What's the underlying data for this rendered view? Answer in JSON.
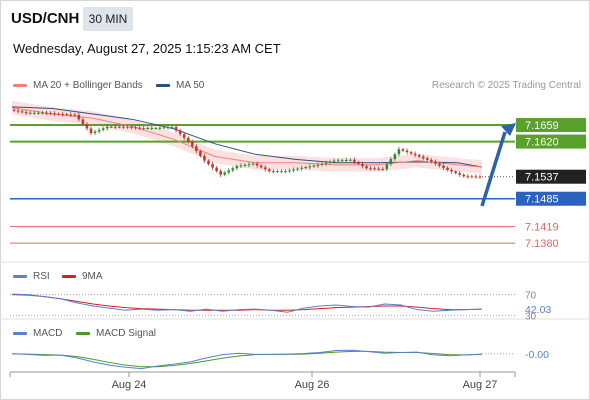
{
  "header": {
    "symbol": "USD/CNH",
    "timeframe": "30 MIN",
    "datetime": "Wednesday, August 27, 2025 1:15:23 AM CET"
  },
  "legend": {
    "ma20": {
      "label": "MA 20 + Bollinger Bands",
      "color": "#f08080"
    },
    "ma50": {
      "label": "MA 50",
      "color": "#2f4f7f"
    },
    "credit": "Research © 2025 Trading Central"
  },
  "colors": {
    "bull": "#2e8b2e",
    "bear": "#c0392b",
    "band": "#fcd6d6",
    "resistance": "#5aa02c",
    "support": "#2b62c0",
    "pivot": "#e06666",
    "last": "#222222",
    "rsi": "#5b7fd6",
    "rsi_ma": "#d62020",
    "macd": "#5b7fd6",
    "macd_signal": "#4b9a2a"
  },
  "chart_data": {
    "type": "line",
    "title": "USD/CNH",
    "subtitle": "30 MIN",
    "xlabel": "",
    "ylabel": "",
    "x_ticks": [
      "Aug 24",
      "Aug 26",
      "Aug 27"
    ],
    "ylim": [
      7.1345,
      7.173
    ],
    "series": [
      {
        "name": "USD/CNH",
        "x": [
          0,
          4,
          8,
          12,
          16,
          20,
          24,
          28,
          32,
          36,
          40,
          44,
          48,
          52,
          56,
          60,
          64,
          68,
          72,
          76,
          80,
          84,
          88,
          92,
          96,
          100,
          104,
          108,
          112,
          116
        ],
        "values": [
          7.1695,
          7.1688,
          7.1688,
          7.1685,
          7.1683,
          7.164,
          7.1655,
          7.1655,
          7.1652,
          7.1652,
          7.1655,
          7.162,
          7.1575,
          7.1542,
          7.1562,
          7.1568,
          7.155,
          7.155,
          7.1558,
          7.1565,
          7.1575,
          7.1577,
          7.1557,
          7.1555,
          7.1602,
          7.1588,
          7.1573,
          7.1553,
          7.1538,
          7.1537
        ]
      },
      {
        "name": "MA 20 + Bollinger Bands",
        "x": [
          0,
          10,
          20,
          30,
          40,
          50,
          60,
          70,
          80,
          90,
          100,
          110,
          116
        ],
        "values": [
          7.17,
          7.1685,
          7.1675,
          7.1655,
          7.1625,
          7.1585,
          7.157,
          7.157,
          7.1565,
          7.1565,
          7.1575,
          7.1565,
          7.156
        ]
      },
      {
        "name": "MA 50",
        "x": [
          0,
          10,
          20,
          30,
          40,
          50,
          60,
          70,
          80,
          90,
          100,
          110,
          116
        ],
        "values": [
          7.1702,
          7.1698,
          7.1685,
          7.1672,
          7.165,
          7.1615,
          7.159,
          7.1578,
          7.157,
          7.157,
          7.1572,
          7.157,
          7.156
        ]
      }
    ],
    "levels": [
      {
        "value": 7.1659,
        "label": "7.1659",
        "kind": "target"
      },
      {
        "value": 7.162,
        "label": "7.1620",
        "kind": "resistance"
      },
      {
        "value": 7.1537,
        "label": "7.1537",
        "kind": "last"
      },
      {
        "value": 7.1485,
        "label": "7.1485",
        "kind": "support"
      },
      {
        "value": 7.1419,
        "label": "7.1419",
        "kind": "pivot"
      },
      {
        "value": 7.138,
        "label": "7.1380",
        "kind": "pivot"
      }
    ],
    "rsi": {
      "legend": [
        "RSI",
        "9MA"
      ],
      "ticks": [
        "70",
        "30"
      ],
      "last_label": "42.03",
      "ylim": [
        25,
        75
      ],
      "rsi_values": [
        71,
        70,
        66,
        62,
        54,
        48,
        44,
        40,
        42,
        40,
        41,
        38,
        42,
        38,
        41,
        42,
        40,
        36,
        44,
        48,
        50,
        47,
        46,
        52,
        50,
        41,
        38,
        40,
        41,
        42
      ],
      "ma_values": [
        70,
        69,
        66,
        62,
        57,
        52,
        48,
        45,
        43,
        42,
        41,
        40,
        40,
        40,
        40,
        41,
        40,
        40,
        41,
        43,
        45,
        46,
        47,
        48,
        48,
        46,
        43,
        41,
        41,
        42
      ]
    },
    "macd": {
      "legend": [
        "MACD",
        "MACD Signal"
      ],
      "last_label": "-0.00",
      "ylim": [
        -6,
        4
      ],
      "macd_values": [
        0,
        -0.2,
        -0.6,
        -0.5,
        -1.5,
        -3,
        -4.2,
        -5,
        -5.5,
        -4.5,
        -3.8,
        -3,
        -1.5,
        -0.3,
        0.2,
        -0.2,
        -0.2,
        -0.1,
        0.1,
        0.5,
        1.2,
        1.3,
        0.8,
        0.2,
        0.5,
        0.6,
        -0.4,
        -0.7,
        -0.4,
        -0.1
      ],
      "signal_values": [
        0,
        -0.1,
        -0.3,
        -0.5,
        -1,
        -2,
        -3.2,
        -4.2,
        -4.8,
        -4.8,
        -4.3,
        -3.6,
        -2.6,
        -1.6,
        -0.8,
        -0.3,
        -0.2,
        -0.2,
        -0.1,
        0.2,
        0.6,
        0.9,
        0.9,
        0.6,
        0.5,
        0.5,
        0.1,
        -0.3,
        -0.4,
        -0.2
      ]
    }
  }
}
